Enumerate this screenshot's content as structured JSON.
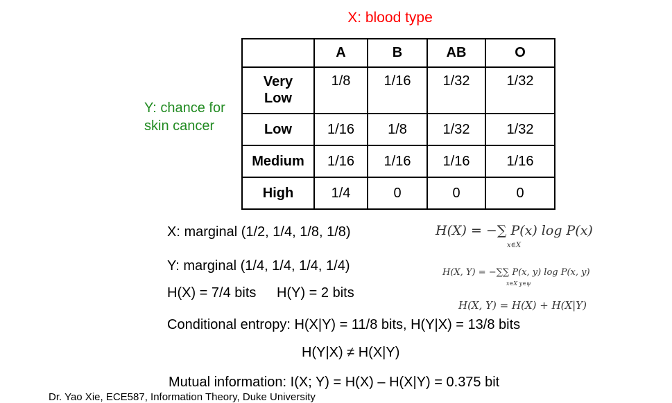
{
  "titles": {
    "x_label": "X: blood type",
    "y_label": "Y: chance for skin cancer"
  },
  "table": {
    "columns": [
      "A",
      "B",
      "AB",
      "O"
    ],
    "rows": [
      {
        "label": "Very Low",
        "values": [
          "1/8",
          "1/16",
          "1/32",
          "1/32"
        ]
      },
      {
        "label": "Low",
        "values": [
          "1/16",
          "1/8",
          "1/32",
          "1/32"
        ]
      },
      {
        "label": "Medium",
        "values": [
          "1/16",
          "1/16",
          "1/16",
          "1/16"
        ]
      },
      {
        "label": "High",
        "values": [
          "1/4",
          "0",
          "0",
          "0"
        ]
      }
    ]
  },
  "text": {
    "x_marginal": "X: marginal (1/2, 1/4, 1/8, 1/8)",
    "y_marginal": "Y: marginal (1/4, 1/4, 1/4, 1/4)",
    "hx": "H(X) = 7/4 bits",
    "hy": "H(Y) = 2 bits",
    "conditional": "Conditional entropy: H(X|Y) = 11/8 bits, H(Y|X) = 13/8 bits",
    "inequality": "H(Y|X) ≠ H(X|Y)",
    "mutual": "Mutual information: I(X; Y) = H(X) – H(X|Y) = 0.375 bit",
    "footer": "Dr. Yao Xie, ECE587, Information Theory, Duke University"
  },
  "formulas": {
    "hx_def": "H(X) = −∑ P(x) log P(x)",
    "hx_sub": "x∈X",
    "hxy_def": "H(X, Y) = −∑∑ P(x, y) log P(x, y)",
    "hxy_sub": "x∈X y∈ψ",
    "chain": "H(X, Y) = H(X) + H(X|Y)"
  }
}
